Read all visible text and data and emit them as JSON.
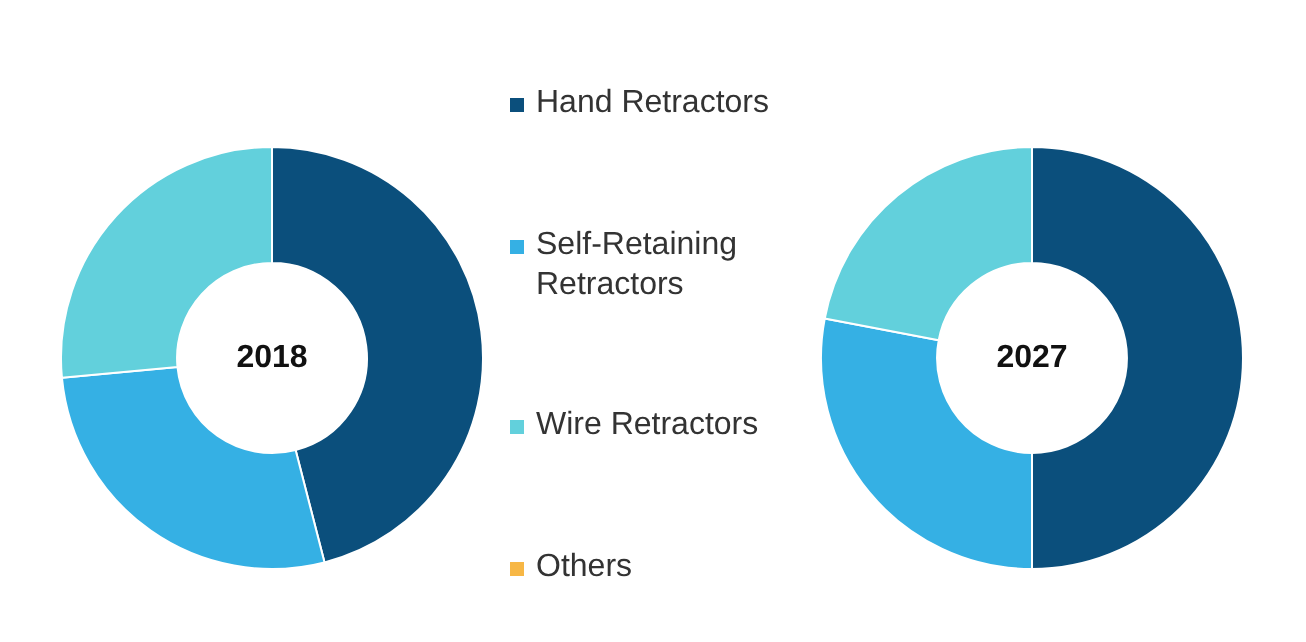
{
  "chart_data": [
    {
      "type": "donut",
      "title": "2018",
      "categories": [
        "Hand Retractors",
        "Self-Retaining Retractors",
        "Wire Retractors",
        "Others"
      ],
      "values": [
        46,
        27.5,
        26.5,
        0
      ],
      "colors": [
        "#0b4f7c",
        "#35b0e4",
        "#62d0dc",
        "#f7b745"
      ],
      "legend": "right"
    },
    {
      "type": "donut",
      "title": "2027",
      "categories": [
        null,
        null,
        null,
        null
      ],
      "values": [
        50,
        28,
        22,
        0
      ],
      "colors": [
        "#0b4f7c",
        "#35b0e4",
        "#62d0dc",
        "#f7b745"
      ]
    }
  ]
}
